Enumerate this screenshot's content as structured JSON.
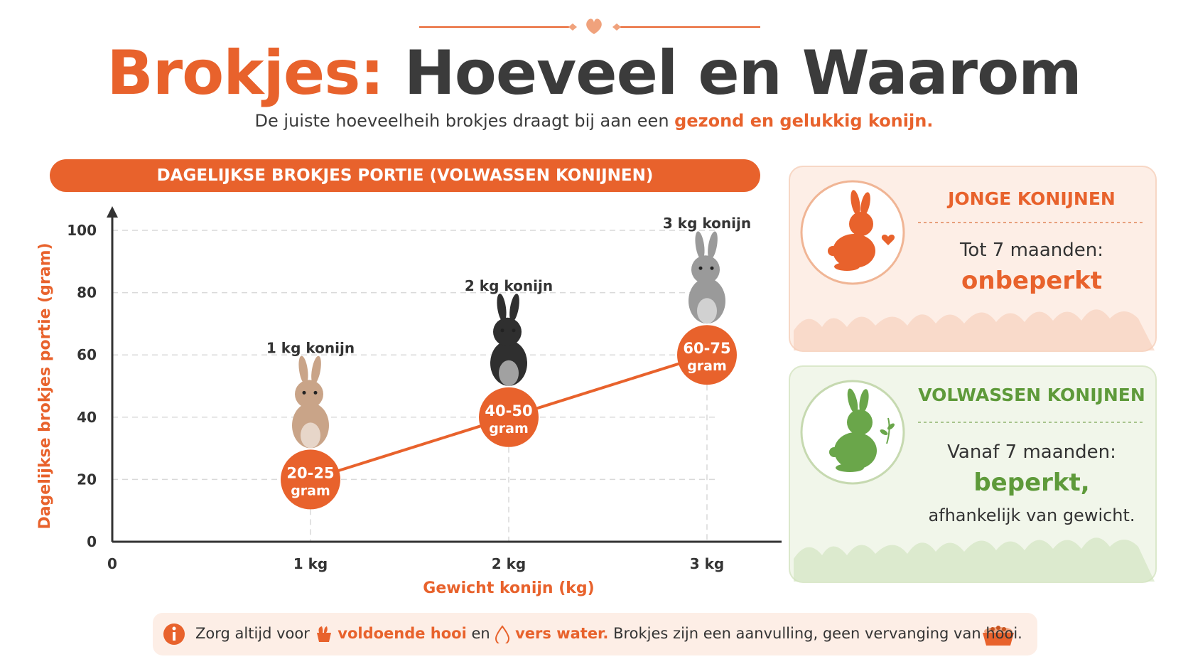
{
  "title": {
    "part1": "Brokjes:",
    "part2": "Hoeveel en Waarom"
  },
  "subtitle": {
    "text": "De juiste hoeveelheih brokjes draagt bij aan een",
    "highlight": "gezond en gelukkig konijn."
  },
  "chart_banner": "DAGELIJKSE BROKJES PORTIE (VOLWASSEN KONIJNEN)",
  "chart_data": {
    "type": "line",
    "xlabel": "Gewicht konijn (kg)",
    "ylabel": "Dagelijkse brokjes portie (gram)",
    "xlim": [
      0,
      3.4
    ],
    "ylim": [
      0,
      100
    ],
    "x_ticks": [
      {
        "value": 0,
        "label": "0"
      },
      {
        "value": 1,
        "label": "1 kg"
      },
      {
        "value": 2,
        "label": "2 kg"
      },
      {
        "value": 3,
        "label": "3 kg"
      }
    ],
    "y_ticks": [
      0,
      20,
      40,
      60,
      80,
      100
    ],
    "grid": true,
    "points": [
      {
        "x": 1,
        "y": 20,
        "range_label": "20-25",
        "unit_label": "gram",
        "rabbit_label": "1 kg konijn",
        "rabbit_color": "#c9a488"
      },
      {
        "x": 2,
        "y": 40,
        "range_label": "40-50",
        "unit_label": "gram",
        "rabbit_label": "2 kg konijn",
        "rabbit_color": "#2f2f2f"
      },
      {
        "x": 3,
        "y": 60,
        "range_label": "60-75",
        "unit_label": "gram",
        "rabbit_label": "3 kg konijn",
        "rabbit_color": "#9a9a9a"
      }
    ],
    "colors": {
      "accent": "#e8622c",
      "grid": "#d9d9d9",
      "axis": "#333333"
    }
  },
  "panels": {
    "young": {
      "title": "JONGE KONIJNEN",
      "line1": "Tot 7 maanden:",
      "big": "onbeperkt",
      "icon": "orange-rabbit-heart-icon",
      "color": "#e8622c"
    },
    "adult": {
      "title": "VOLWASSEN KONIJNEN",
      "line1": "Vanaf 7 maanden:",
      "big": "beperkt,",
      "line3": "afhankelijk van gewicht.",
      "icon": "green-rabbit-leaf-icon",
      "color": "#5e9a3a"
    }
  },
  "footer": {
    "text1": "Zorg altijd voor",
    "hl1": "voldoende hooi",
    "text2": "en",
    "hl2": "vers water.",
    "text3": "Brokjes zijn een aanvulling, geen vervanging van hooi.",
    "icons": [
      "info-icon",
      "hay-icon",
      "water-drop-icon",
      "food-bowl-icon"
    ]
  }
}
